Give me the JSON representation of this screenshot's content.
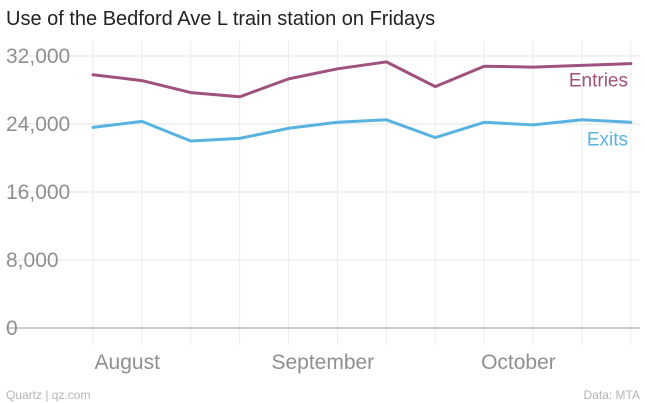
{
  "chart_data": {
    "type": "line",
    "title": "Use of the Bedford Ave L train station on Fridays",
    "y_ticks": [
      "0",
      "8,000",
      "16,000",
      "24,000",
      "32,000"
    ],
    "y_tick_values": [
      0,
      8000,
      16000,
      24000,
      32000
    ],
    "ylim": [
      0,
      32000
    ],
    "x_ticks": [
      "August",
      "September",
      "October"
    ],
    "x_tick_indices": [
      0.7,
      4.7,
      8.7
    ],
    "grid": true,
    "series": [
      {
        "name": "Entries",
        "color": "#a0527f",
        "values": [
          29800,
          29100,
          27700,
          27200,
          29300,
          30500,
          31300,
          28400,
          30800,
          30700,
          30900,
          31100
        ]
      },
      {
        "name": "Exits",
        "color": "#58b3e0",
        "values": [
          23600,
          24300,
          22000,
          22300,
          23500,
          24200,
          24500,
          22400,
          24200,
          23900,
          24500,
          24200
        ]
      }
    ]
  },
  "footer": {
    "source_left": "Quartz | qz.com",
    "source_right": "Data: MTA"
  }
}
